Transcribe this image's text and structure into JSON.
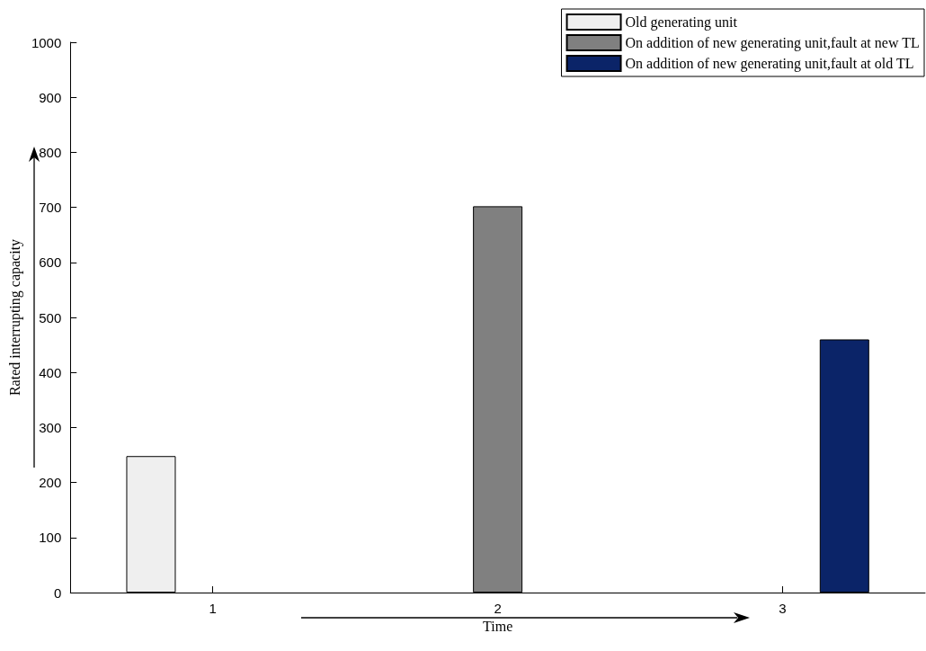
{
  "chart_data": {
    "type": "bar",
    "xlabel": "Time",
    "ylabel": "Rated interrupting capacity",
    "categories": [
      "1",
      "2",
      "3"
    ],
    "series": [
      {
        "name": "Old generating unit",
        "color": "#efefef",
        "values": [
          248,
          null,
          null
        ]
      },
      {
        "name": "On addition of new generating unit,fault at new TL",
        "color": "#808080",
        "values": [
          null,
          702,
          null
        ]
      },
      {
        "name": "On addition of new generating unit,fault at old TL",
        "color": "#0b2468",
        "values": [
          null,
          null,
          460
        ]
      }
    ],
    "ylim": [
      0,
      1000
    ],
    "yticks": [
      0,
      100,
      200,
      300,
      400,
      500,
      600,
      700,
      800,
      900,
      1000
    ],
    "grid": false,
    "legend": "top right"
  }
}
